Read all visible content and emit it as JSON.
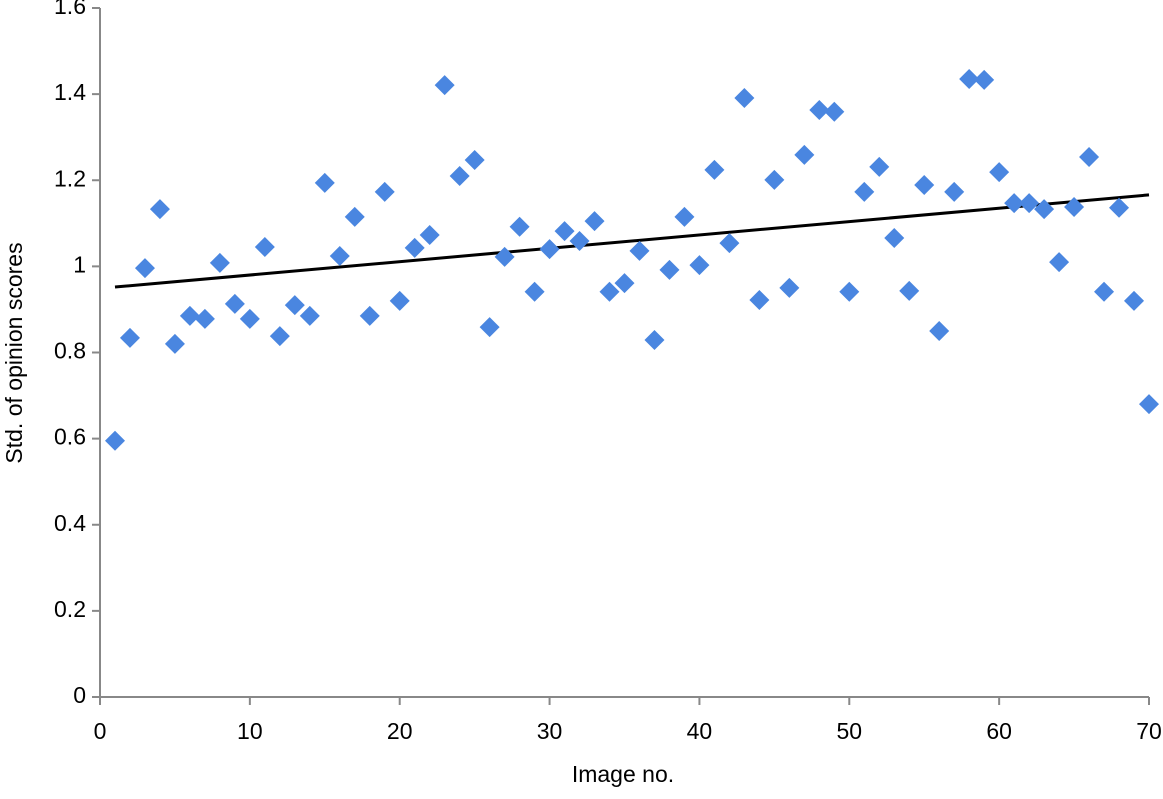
{
  "chart_data": {
    "type": "scatter",
    "xlabel": "Image no.",
    "ylabel": "Std. of opinion scores",
    "x": [
      1,
      2,
      3,
      4,
      5,
      6,
      7,
      8,
      9,
      10,
      11,
      12,
      13,
      14,
      15,
      16,
      17,
      18,
      19,
      20,
      21,
      22,
      23,
      24,
      25,
      26,
      27,
      28,
      29,
      30,
      31,
      32,
      33,
      34,
      35,
      36,
      37,
      38,
      39,
      40,
      41,
      42,
      43,
      44,
      45,
      46,
      47,
      48,
      49,
      50,
      51,
      52,
      53,
      54,
      55,
      56,
      57,
      58,
      59,
      60,
      61,
      62,
      63,
      64,
      65,
      66,
      67,
      68,
      69,
      70
    ],
    "values": [
      0.595,
      0.834,
      0.996,
      1.133,
      0.82,
      0.885,
      0.878,
      1.008,
      0.913,
      0.878,
      1.045,
      0.838,
      0.91,
      0.885,
      1.194,
      1.024,
      1.115,
      0.885,
      1.173,
      0.92,
      1.043,
      1.073,
      1.421,
      1.21,
      1.247,
      0.859,
      1.022,
      1.092,
      0.941,
      1.04,
      1.082,
      1.059,
      1.105,
      0.941,
      0.961,
      1.036,
      0.829,
      0.992,
      1.115,
      1.003,
      1.224,
      1.054,
      1.391,
      0.922,
      1.201,
      0.95,
      1.259,
      1.363,
      1.359,
      0.941,
      1.173,
      1.231,
      1.066,
      0.943,
      1.189,
      0.85,
      1.173,
      1.435,
      1.433,
      1.219,
      1.147,
      1.147,
      1.133,
      1.01,
      1.138,
      1.254,
      0.941,
      1.136,
      0.92,
      0.68
    ],
    "color": "#4a86e0",
    "trendline": {
      "x": [
        1,
        70
      ],
      "values": [
        0.952,
        1.166
      ],
      "color": "#000000"
    },
    "xlim": [
      0,
      70
    ],
    "xticks": [
      0,
      10,
      20,
      30,
      40,
      50,
      60,
      70
    ],
    "ylim": [
      0,
      1.6
    ],
    "yticks": [
      0,
      0.2,
      0.4,
      0.6,
      0.8,
      1,
      1.2,
      1.4,
      1.6
    ],
    "grid": false
  }
}
